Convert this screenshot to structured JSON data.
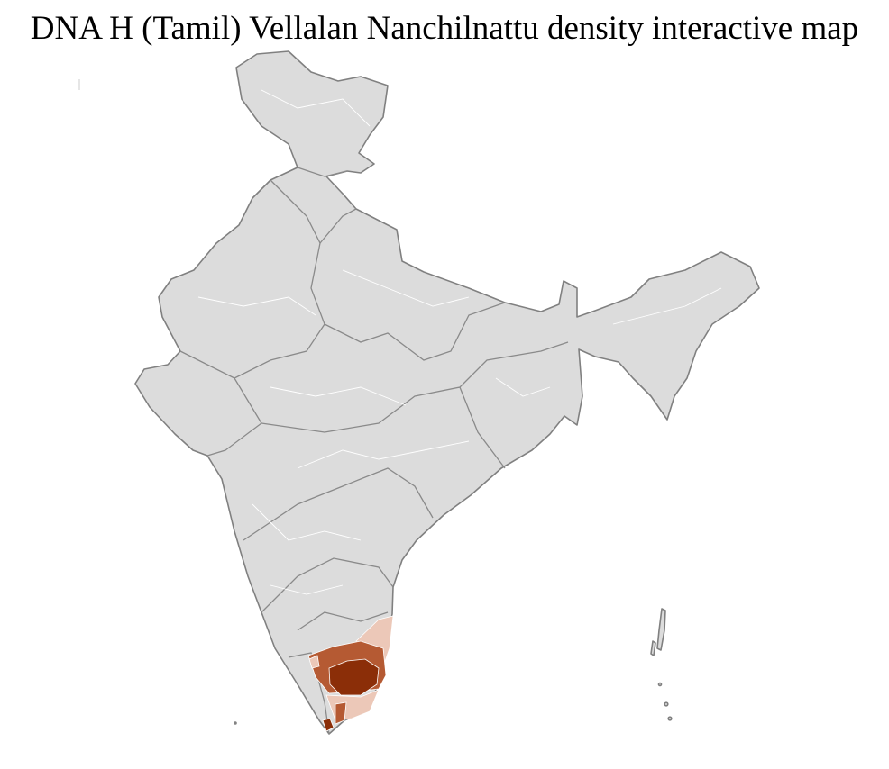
{
  "title": "DNA H (Tamil) Vellalan Nanchilnattu density interactive map",
  "map": {
    "region": "India (district level)",
    "colors": {
      "no_data": "#dcdcdc",
      "border": "#808080",
      "district_border": "#ffffff",
      "low": "#ecc8b8",
      "medium": "#b55a33",
      "high": "#8b2e08"
    },
    "highlighted_regions": [
      {
        "area": "northern Tamil Nadu coast",
        "level": "low"
      },
      {
        "area": "western Tamil Nadu",
        "level": "medium"
      },
      {
        "area": "central Tamil Nadu",
        "level": "high"
      },
      {
        "area": "southern Tamil Nadu",
        "level": "low"
      },
      {
        "area": "southern Tamil Nadu strip",
        "level": "medium"
      },
      {
        "area": "southern tip",
        "level": "high"
      }
    ]
  }
}
